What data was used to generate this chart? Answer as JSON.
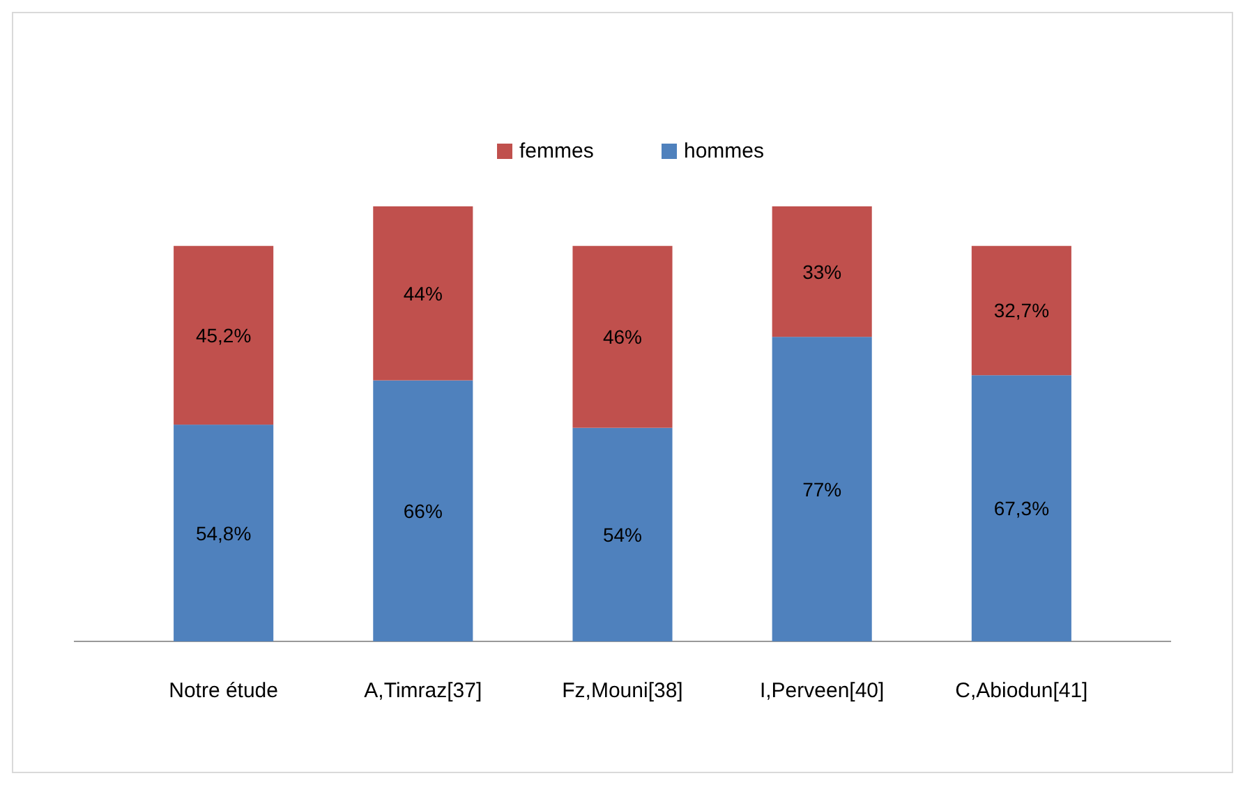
{
  "chart_data": {
    "type": "bar",
    "stacked": true,
    "categories": [
      "Notre étude",
      "A,Timraz[37]",
      "Fz,Mouni[38]",
      "I,Perveen[40]",
      "C,Abiodun[41]"
    ],
    "series": [
      {
        "name": "hommes",
        "color": "#4f81bd",
        "values": [
          54.8,
          66,
          54,
          77,
          67.3
        ],
        "value_labels": [
          "54,8%",
          "66%",
          "54%",
          "77%",
          "67,3%"
        ]
      },
      {
        "name": "femmes",
        "color": "#c0504d",
        "values": [
          45.2,
          44,
          46,
          33,
          32.7
        ],
        "value_labels": [
          "45,2%",
          "44%",
          "46%",
          "33%",
          "32,7%"
        ]
      }
    ],
    "legend": "top",
    "grid": false,
    "tick_labels": "x"
  }
}
